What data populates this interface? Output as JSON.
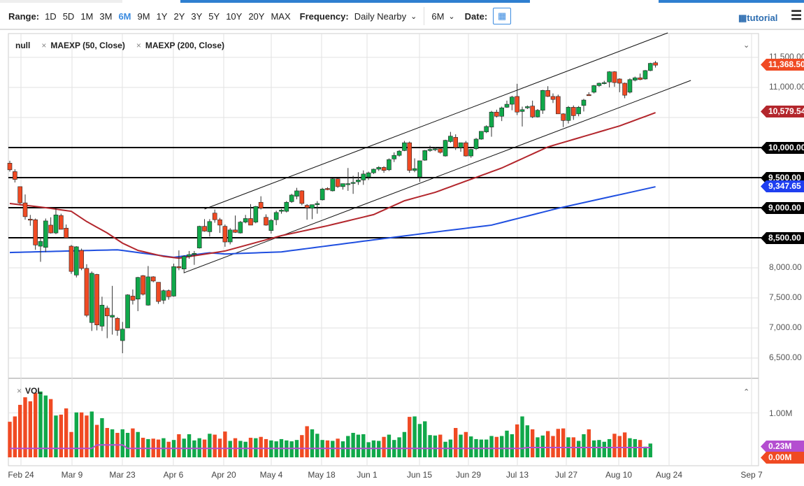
{
  "toolbar": {
    "range_label": "Range:",
    "ranges": [
      "1D",
      "5D",
      "1M",
      "3M",
      "6M",
      "9M",
      "1Y",
      "2Y",
      "3Y",
      "5Y",
      "10Y",
      "20Y",
      "MAX"
    ],
    "active_range": "6M",
    "frequency_label": "Frequency:",
    "frequency_value": "Daily Nearby",
    "period_value": "6M",
    "date_label": "Date:",
    "tutorial_label": "tutorial"
  },
  "legend": {
    "symbol": "null",
    "studies": [
      "MAEXP (50, Close)",
      "MAEXP (200, Close)"
    ],
    "volume": "VOL"
  },
  "colors": {
    "up": "#10a84a",
    "down": "#f04a23",
    "ma50": "#b3262c",
    "ma200": "#1f4fe0",
    "vol_ma": "#b44ed0",
    "accent": "#3b8be0"
  },
  "price_axis": {
    "ticks": [
      "11,500.00",
      "11,000.00",
      "8,000.00",
      "7,500.00",
      "7,000.00",
      "6,500.00"
    ],
    "tick_values": [
      11500,
      11000,
      8000,
      7500,
      7000,
      6500
    ]
  },
  "tags": {
    "last_price": "11,368.50",
    "ma50": "10,579.54",
    "ma200": "9,347.65",
    "levels": [
      "10,000.00",
      "9,500.00",
      "9,000.00",
      "8,500.00"
    ]
  },
  "volume_axis": {
    "tick": "1.00M",
    "vol_ma_tag": "0.23M",
    "last_volume_tag": "0.00M"
  },
  "x_axis": [
    "Feb 24",
    "Mar 9",
    "Mar 23",
    "Apr 6",
    "Apr 20",
    "May 4",
    "May 18",
    "Jun 1",
    "Jun 15",
    "Jun 29",
    "Jul 13",
    "Jul 27",
    "Aug 10",
    "Aug 24",
    "Sep 7"
  ],
  "chart_data": {
    "type": "candlestick",
    "ylim": [
      6300,
      11800
    ],
    "horizontal_levels": [
      10000,
      9500,
      9000,
      8500
    ],
    "candles_ohlc": [
      [
        9740,
        9780,
        9600,
        9630
      ],
      [
        9600,
        9640,
        9420,
        9470
      ],
      [
        9350,
        9350,
        9060,
        9080
      ],
      [
        9080,
        9220,
        8800,
        8850
      ],
      [
        8810,
        8880,
        8700,
        8800
      ],
      [
        8800,
        8820,
        8300,
        8380
      ],
      [
        8360,
        8500,
        8100,
        8440
      ],
      [
        8340,
        8820,
        8260,
        8780
      ],
      [
        8710,
        8840,
        8570,
        8580
      ],
      [
        8580,
        8990,
        8560,
        8880
      ],
      [
        8870,
        8900,
        8640,
        8640
      ],
      [
        8660,
        8720,
        8500,
        8500
      ],
      [
        8360,
        8380,
        7900,
        7940
      ],
      [
        7880,
        8360,
        7840,
        8350
      ],
      [
        8290,
        8320,
        7960,
        7990
      ],
      [
        7990,
        8060,
        7180,
        7210
      ],
      [
        7090,
        7940,
        6950,
        7910
      ],
      [
        7890,
        7900,
        6960,
        7050
      ],
      [
        7030,
        7520,
        6950,
        7380
      ],
      [
        7330,
        7370,
        6830,
        7200
      ],
      [
        7180,
        7700,
        6890,
        7210
      ],
      [
        7160,
        7180,
        6870,
        6960
      ],
      [
        6790,
        7100,
        6580,
        6980
      ],
      [
        7000,
        7560,
        7000,
        7550
      ],
      [
        7530,
        7640,
        7390,
        7460
      ],
      [
        7480,
        7850,
        7280,
        7840
      ],
      [
        7870,
        7880,
        7540,
        7560
      ],
      [
        7380,
        8030,
        7370,
        7850
      ],
      [
        7850,
        7860,
        7760,
        7780
      ],
      [
        7760,
        7760,
        7400,
        7440
      ],
      [
        7460,
        7640,
        7400,
        7620
      ],
      [
        7620,
        7640,
        7470,
        7520
      ],
      [
        7530,
        8070,
        7520,
        8020
      ],
      [
        8020,
        8290,
        7960,
        8000
      ],
      [
        7980,
        8210,
        7910,
        8190
      ],
      [
        8190,
        8280,
        8150,
        8220
      ],
      [
        8220,
        8280,
        8050,
        8240
      ],
      [
        8330,
        8700,
        8320,
        8690
      ],
      [
        8690,
        8810,
        8600,
        8610
      ],
      [
        8600,
        8810,
        8520,
        8770
      ],
      [
        8910,
        8970,
        8750,
        8800
      ],
      [
        8800,
        8830,
        8580,
        8710
      ],
      [
        8690,
        8720,
        8350,
        8430
      ],
      [
        8430,
        8660,
        8390,
        8630
      ],
      [
        8630,
        8870,
        8580,
        8590
      ],
      [
        8580,
        8780,
        8570,
        8760
      ],
      [
        8760,
        8880,
        8740,
        8820
      ],
      [
        8820,
        9060,
        8750,
        8710
      ],
      [
        8760,
        9030,
        8740,
        9020
      ],
      [
        9090,
        9190,
        8970,
        8990
      ],
      [
        8840,
        8890,
        8700,
        8710
      ],
      [
        8620,
        8810,
        8570,
        8790
      ],
      [
        8800,
        8950,
        8710,
        8920
      ],
      [
        8940,
        8980,
        8900,
        8960
      ],
      [
        8940,
        9110,
        8920,
        9090
      ],
      [
        9100,
        9230,
        9080,
        9210
      ],
      [
        9190,
        9330,
        9140,
        9280
      ],
      [
        9280,
        9290,
        9040,
        9070
      ],
      [
        9040,
        9060,
        8800,
        9000
      ],
      [
        8990,
        9050,
        8810,
        9050
      ],
      [
        9050,
        9110,
        8900,
        9070
      ],
      [
        9130,
        9330,
        9120,
        9310
      ],
      [
        9320,
        9340,
        9290,
        9300
      ],
      [
        9280,
        9490,
        9270,
        9480
      ],
      [
        9480,
        9490,
        9330,
        9350
      ],
      [
        9350,
        9400,
        9300,
        9400
      ],
      [
        9390,
        9660,
        9280,
        9400
      ],
      [
        9410,
        9530,
        9230,
        9420
      ],
      [
        9430,
        9590,
        9380,
        9460
      ],
      [
        9460,
        9620,
        9380,
        9560
      ],
      [
        9510,
        9600,
        9460,
        9580
      ],
      [
        9580,
        9650,
        9560,
        9640
      ],
      [
        9640,
        9690,
        9610,
        9670
      ],
      [
        9670,
        9690,
        9580,
        9620
      ],
      [
        9630,
        9820,
        9610,
        9800
      ],
      [
        9810,
        9920,
        9760,
        9870
      ],
      [
        9870,
        9960,
        9850,
        9940
      ],
      [
        9950,
        10110,
        9940,
        10080
      ],
      [
        10080,
        10100,
        9580,
        9620
      ],
      [
        9620,
        9820,
        9590,
        9650
      ],
      [
        9510,
        9780,
        9430,
        9780
      ],
      [
        9790,
        9960,
        9780,
        9950
      ],
      [
        9950,
        10030,
        9930,
        9970
      ],
      [
        9970,
        10010,
        9940,
        9980
      ],
      [
        9980,
        10010,
        9900,
        9920
      ],
      [
        9860,
        10130,
        9850,
        10120
      ],
      [
        10100,
        10260,
        10080,
        10190
      ],
      [
        10170,
        10220,
        9960,
        10000
      ],
      [
        10000,
        10080,
        9930,
        10080
      ],
      [
        10080,
        10110,
        9850,
        9860
      ],
      [
        9860,
        9980,
        9830,
        9970
      ],
      [
        9980,
        10160,
        9960,
        10140
      ],
      [
        10140,
        10270,
        10130,
        10270
      ],
      [
        10260,
        10370,
        10240,
        10350
      ],
      [
        10340,
        10610,
        10180,
        10590
      ],
      [
        10590,
        10630,
        10500,
        10520
      ],
      [
        10520,
        10680,
        10440,
        10660
      ],
      [
        10670,
        10780,
        10660,
        10720
      ],
      [
        10720,
        10860,
        10620,
        10840
      ],
      [
        10850,
        11060,
        10540,
        10590
      ],
      [
        10600,
        10680,
        10350,
        10630
      ],
      [
        10660,
        10700,
        10640,
        10680
      ],
      [
        10690,
        10780,
        10490,
        10510
      ],
      [
        10510,
        10640,
        10500,
        10620
      ],
      [
        10620,
        10960,
        10560,
        10950
      ],
      [
        10950,
        11020,
        10840,
        10850
      ],
      [
        10850,
        10900,
        10740,
        10800
      ],
      [
        10850,
        10880,
        10560,
        10560
      ],
      [
        10560,
        10570,
        10340,
        10450
      ],
      [
        10450,
        10690,
        10400,
        10670
      ],
      [
        10670,
        10700,
        10460,
        10530
      ],
      [
        10560,
        10690,
        10520,
        10670
      ],
      [
        10700,
        10810,
        10600,
        10790
      ],
      [
        10880,
        10920,
        10860,
        10870
      ],
      [
        10920,
        11040,
        10900,
        11030
      ],
      [
        11030,
        11080,
        11010,
        11070
      ],
      [
        11070,
        11110,
        11050,
        11080
      ],
      [
        11090,
        11270,
        11000,
        11260
      ],
      [
        11260,
        11270,
        11010,
        11080
      ],
      [
        11140,
        11150,
        10920,
        11070
      ],
      [
        11070,
        11080,
        10820,
        10870
      ],
      [
        10920,
        11150,
        10900,
        11130
      ],
      [
        11120,
        11180,
        11100,
        11160
      ],
      [
        11160,
        11230,
        11120,
        11130
      ],
      [
        11140,
        11290,
        11130,
        11280
      ],
      [
        11280,
        11410,
        11270,
        11400
      ],
      [
        11410,
        11440,
        11330,
        11370
      ]
    ],
    "volume_millions": [
      0.8,
      0.92,
      1.18,
      1.35,
      1.26,
      1.45,
      1.48,
      1.39,
      1.31,
      0.94,
      0.96,
      1.1,
      0.57,
      1.01,
      1.01,
      0.94,
      1.03,
      0.73,
      0.88,
      0.66,
      0.63,
      0.55,
      0.63,
      0.55,
      0.65,
      0.57,
      0.44,
      0.41,
      0.42,
      0.4,
      0.43,
      0.35,
      0.39,
      0.52,
      0.42,
      0.52,
      0.38,
      0.43,
      0.4,
      0.53,
      0.51,
      0.42,
      0.58,
      0.37,
      0.43,
      0.37,
      0.35,
      0.44,
      0.43,
      0.46,
      0.41,
      0.38,
      0.36,
      0.41,
      0.38,
      0.36,
      0.39,
      0.5,
      0.7,
      0.63,
      0.53,
      0.39,
      0.38,
      0.37,
      0.42,
      0.36,
      0.48,
      0.55,
      0.51,
      0.52,
      0.34,
      0.38,
      0.37,
      0.46,
      0.51,
      0.39,
      0.45,
      0.57,
      0.91,
      0.92,
      0.75,
      0.81,
      0.5,
      0.49,
      0.51,
      0.35,
      0.4,
      0.66,
      0.51,
      0.57,
      0.47,
      0.41,
      0.4,
      0.4,
      0.48,
      0.46,
      0.48,
      0.6,
      0.52,
      0.74,
      0.92,
      0.72,
      0.63,
      0.45,
      0.49,
      0.59,
      0.48,
      0.64,
      0.65,
      0.45,
      0.45,
      0.37,
      0.52,
      0.63,
      0.38,
      0.39,
      0.35,
      0.41,
      0.53,
      0.48,
      0.56,
      0.43,
      0.41,
      0.39,
      0.24,
      0.31,
      0.0
    ],
    "ma50_by_bar": [
      [
        0,
        9070
      ],
      [
        7,
        9000
      ],
      [
        12,
        8940
      ],
      [
        15,
        8770
      ],
      [
        19,
        8580
      ],
      [
        22,
        8410
      ],
      [
        25,
        8290
      ],
      [
        30,
        8190
      ],
      [
        33,
        8160
      ],
      [
        39,
        8240
      ],
      [
        42,
        8280
      ],
      [
        53,
        8535
      ],
      [
        62,
        8700
      ],
      [
        71,
        8885
      ],
      [
        77,
        9115
      ],
      [
        83,
        9255
      ],
      [
        96,
        9660
      ],
      [
        105,
        10010
      ],
      [
        112,
        10185
      ],
      [
        119,
        10360
      ],
      [
        126,
        10580
      ]
    ],
    "ma200_by_bar": [
      [
        0,
        8255
      ],
      [
        21,
        8300
      ],
      [
        32,
        8175
      ],
      [
        39,
        8250
      ],
      [
        42,
        8230
      ],
      [
        53,
        8265
      ],
      [
        71,
        8465
      ],
      [
        83,
        8595
      ],
      [
        94,
        8710
      ],
      [
        107,
        8990
      ],
      [
        126,
        9348
      ]
    ],
    "trendlines": [
      [
        [
          38,
          8977
        ],
        [
          128.4,
          11907
        ]
      ],
      [
        [
          34,
          7918
        ],
        [
          132.9,
          11116
        ]
      ]
    ]
  }
}
